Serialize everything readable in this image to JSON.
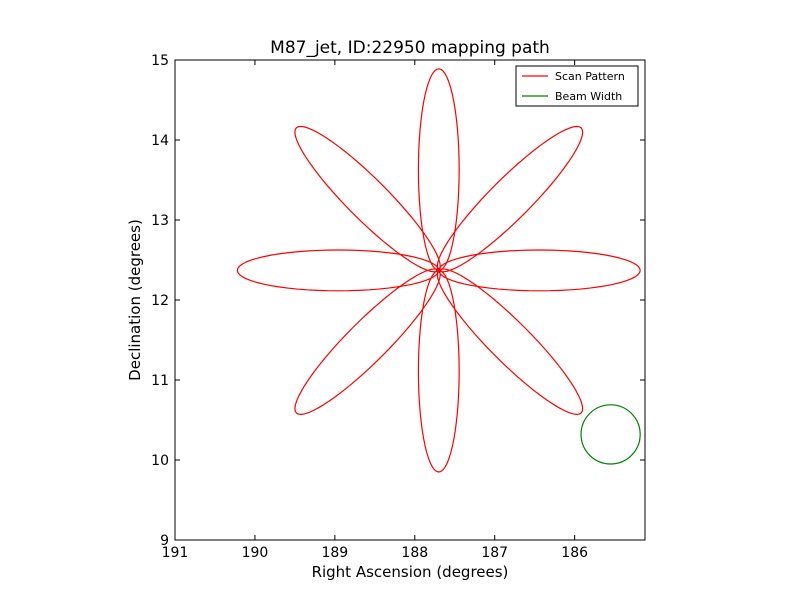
{
  "chart_data": {
    "type": "line",
    "title": "M87_jet, ID:22950 mapping path",
    "xlabel": "Right Ascension (degrees)",
    "ylabel": "Declination (degrees)",
    "xlim": [
      191.0,
      185.12
    ],
    "ylim": [
      9.0,
      15.0
    ],
    "x_inverted": true,
    "xticks": [
      {
        "value": 191,
        "label": "191"
      },
      {
        "value": 190,
        "label": "190"
      },
      {
        "value": 189,
        "label": "189"
      },
      {
        "value": 188,
        "label": "188"
      },
      {
        "value": 187,
        "label": "187"
      },
      {
        "value": 186,
        "label": "186"
      }
    ],
    "yticks": [
      {
        "value": 9,
        "label": "9"
      },
      {
        "value": 10,
        "label": "10"
      },
      {
        "value": 11,
        "label": "11"
      },
      {
        "value": 12,
        "label": "12"
      },
      {
        "value": 13,
        "label": "13"
      },
      {
        "value": 14,
        "label": "14"
      },
      {
        "value": 15,
        "label": "15"
      }
    ],
    "grid": false,
    "legend_position": "top-right",
    "series": [
      {
        "name": "Scan Pattern",
        "color": "#ff0000",
        "pattern": "rose",
        "center": [
          187.7,
          12.37
        ],
        "petals": 8,
        "petal_length": 2.52,
        "petal_half_width": 0.34,
        "values_note_points": [
          [
            187.7,
            12.37
          ],
          [
            187.73,
            14.89
          ],
          [
            187.7,
            12.37
          ],
          [
            185.85,
            14.18
          ],
          [
            187.7,
            12.37
          ],
          [
            185.12,
            12.37
          ],
          [
            187.7,
            12.37
          ],
          [
            185.85,
            10.57
          ],
          [
            187.7,
            12.37
          ],
          [
            187.7,
            9.86
          ],
          [
            187.7,
            12.37
          ],
          [
            189.55,
            10.57
          ],
          [
            187.7,
            12.37
          ],
          [
            190.27,
            12.37
          ],
          [
            187.7,
            12.37
          ],
          [
            189.55,
            14.18
          ]
        ]
      },
      {
        "name": "Beam Width",
        "color": "#008000",
        "pattern": "circle",
        "center": [
          185.55,
          10.32
        ],
        "radius": 0.37
      }
    ]
  }
}
